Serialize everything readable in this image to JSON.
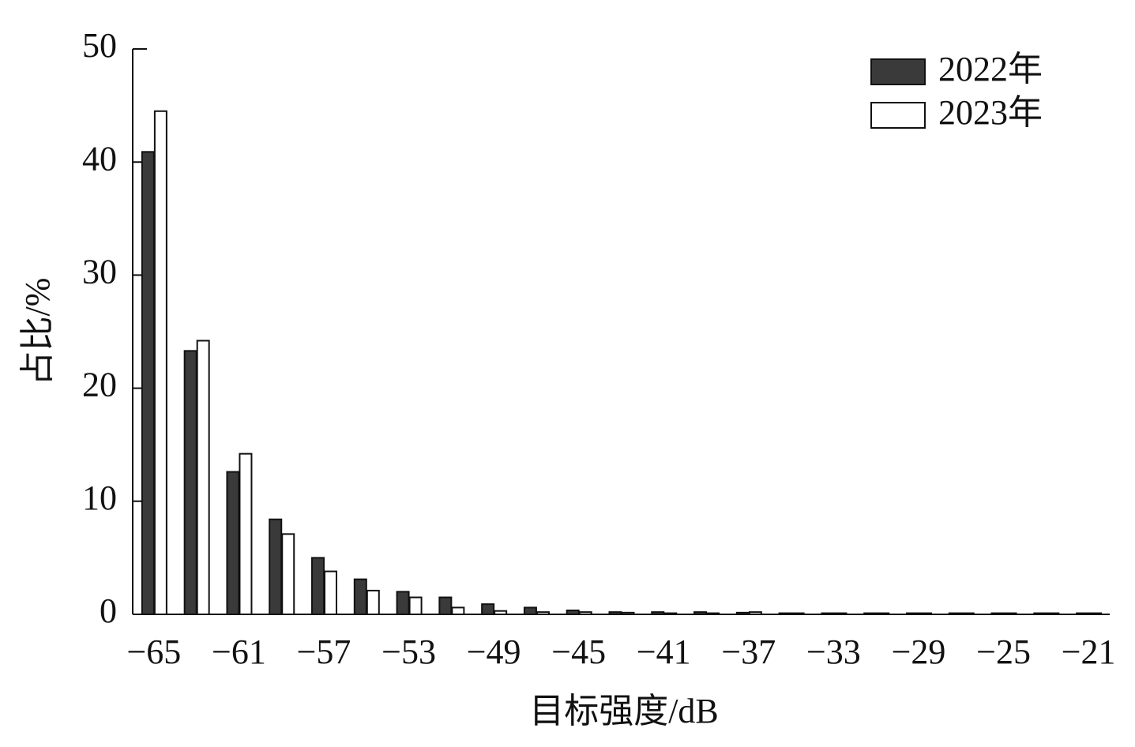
{
  "chart_data": {
    "type": "bar",
    "x_label": "目标强度/dB",
    "y_label": "占比/%",
    "categories": [
      "−65",
      null,
      "−61",
      null,
      "−57",
      null,
      "−53",
      null,
      "−49",
      null,
      "−45",
      null,
      "−41",
      null,
      "−37",
      null,
      "−33",
      null,
      "−29",
      null,
      "−25",
      null,
      "−21"
    ],
    "series": [
      {
        "name": "2022年",
        "color": "#3a3a3a",
        "values": [
          40.9,
          23.3,
          12.6,
          8.4,
          5.0,
          3.1,
          2.0,
          1.5,
          0.9,
          0.6,
          0.35,
          0.2,
          0.2,
          0.2,
          0.15,
          0.1,
          0.1,
          0.1,
          0.1,
          0.1,
          0.1,
          0.1,
          0.1
        ]
      },
      {
        "name": "2023年",
        "color": "#ffffff",
        "values": [
          44.5,
          24.2,
          14.2,
          7.1,
          3.8,
          2.1,
          1.5,
          0.6,
          0.3,
          0.2,
          0.2,
          0.15,
          0.1,
          0.1,
          0.2,
          0.1,
          0.1,
          0.1,
          0.1,
          0.1,
          0.1,
          0.1,
          0.1
        ]
      }
    ],
    "ylim": [
      0,
      50
    ],
    "yticks": [
      0,
      10,
      20,
      30,
      40,
      50
    ],
    "legend": "top-right"
  }
}
